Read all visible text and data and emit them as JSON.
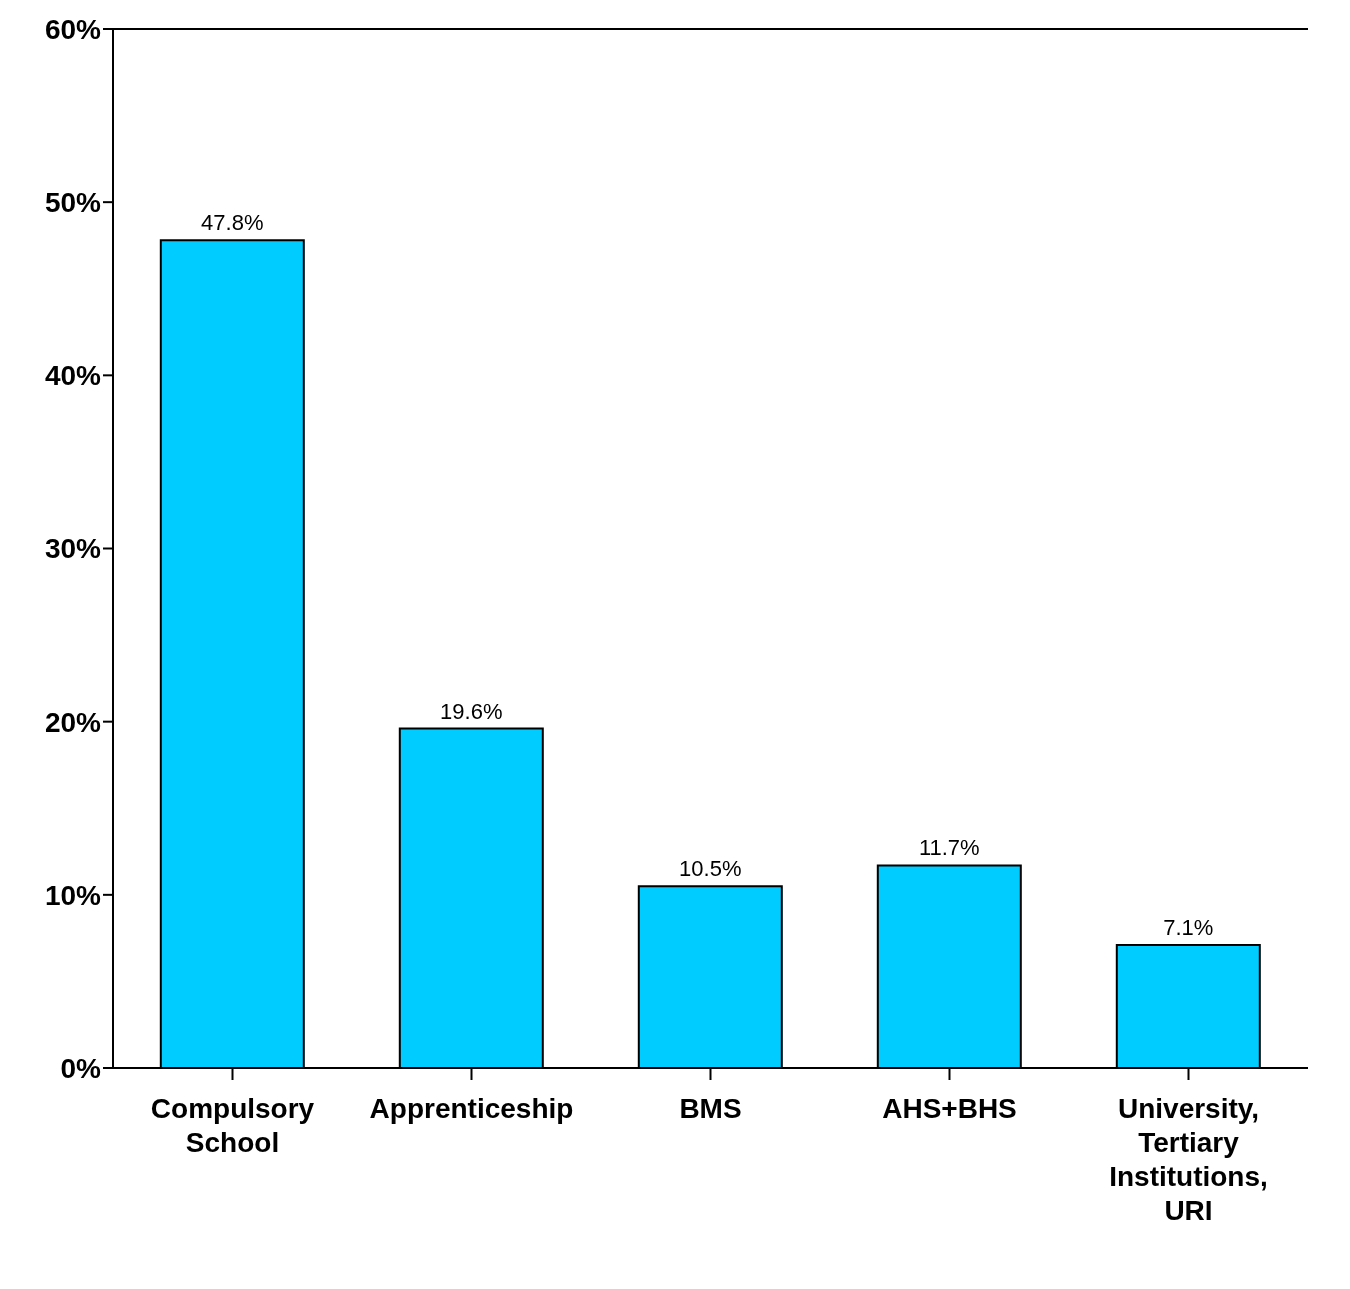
{
  "chart_data": {
    "type": "bar",
    "categories": [
      "Compulsory School",
      "Apprenticeship",
      "BMS",
      "AHS+BHS",
      "University, Tertiary Institutions, URI"
    ],
    "values": [
      47.8,
      19.6,
      10.5,
      11.7,
      7.1
    ],
    "value_labels": [
      "47.8%",
      "19.6%",
      "10.5%",
      "11.7%",
      "7.1%"
    ],
    "color": "#00ccff",
    "ylim": [
      0,
      60
    ],
    "yticks": [
      {
        "value": 0,
        "label": "0%"
      },
      {
        "value": 10,
        "label": "10%"
      },
      {
        "value": 20,
        "label": "20%"
      },
      {
        "value": 30,
        "label": "30%"
      },
      {
        "value": 40,
        "label": "40%"
      },
      {
        "value": 50,
        "label": "50%"
      },
      {
        "value": 60,
        "label": "60%"
      }
    ],
    "grid": false,
    "legend": false
  }
}
